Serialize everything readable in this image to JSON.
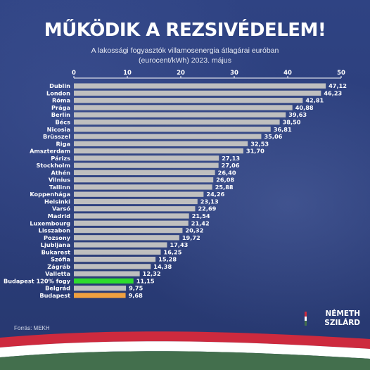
{
  "title": "MŰKÖDIK A REZSIVÉDELEM!",
  "subtitle_line1": "A lakossági fogyasztók villamosenergia átlagárai euróban",
  "subtitle_line2": "(eurocent/kWh) 2023. május",
  "source": "Forrás: MEKH",
  "logo": {
    "line1": "NÉMETH",
    "line2": "SZILÁRD"
  },
  "colors": {
    "background": "#2c3f7d",
    "bar_default": "#bfbfbf",
    "bar_highlight_green": "#2ddc2d",
    "bar_highlight_orange": "#f0a040",
    "flag_red": "#cd2a3e",
    "flag_white": "#ffffff",
    "flag_green": "#436f4d"
  },
  "chart_data": {
    "type": "bar",
    "orientation": "horizontal",
    "xlim": [
      0,
      50
    ],
    "xticks": [
      0,
      10,
      20,
      30,
      40,
      50
    ],
    "grid": false,
    "categories": [
      "Dublin",
      "London",
      "Róma",
      "Prága",
      "Berlin",
      "Bécs",
      "Nicosia",
      "Brüsszel",
      "Riga",
      "Amszterdam",
      "Párizs",
      "Stockholm",
      "Athén",
      "Vilnius",
      "Tallinn",
      "Koppenhága",
      "Helsinki",
      "Varsó",
      "Madrid",
      "Luxembourg",
      "Lisszabon",
      "Pozsony",
      "Ljubljana",
      "Bukarest",
      "Szófia",
      "Zágráb",
      "Valletta",
      "Budapest 120% fogy",
      "Belgrád",
      "Budapest"
    ],
    "values": [
      47.12,
      46.23,
      42.81,
      40.88,
      39.63,
      38.5,
      36.81,
      35.06,
      32.53,
      31.7,
      27.13,
      27.06,
      26.4,
      26.08,
      25.88,
      24.26,
      23.13,
      22.69,
      21.54,
      21.42,
      20.32,
      19.72,
      17.43,
      16.25,
      15.28,
      14.38,
      12.32,
      11.15,
      9.75,
      9.68
    ],
    "value_labels": [
      "47,12",
      "46,23",
      "42,81",
      "40,88",
      "39,63",
      "38,50",
      "36,81",
      "35,06",
      "32,53",
      "31,70",
      "27,13",
      "27,06",
      "26,40",
      "26,08",
      "25,88",
      "24,26",
      "23,13",
      "22,69",
      "21,54",
      "21,42",
      "20,32",
      "19,72",
      "17,43",
      "16,25",
      "15,28",
      "14,38",
      "12,32",
      "11,15",
      "9,75",
      "9,68"
    ],
    "highlight": {
      "Budapest 120% fogy": "#2ddc2d",
      "Budapest": "#f0a040"
    }
  }
}
